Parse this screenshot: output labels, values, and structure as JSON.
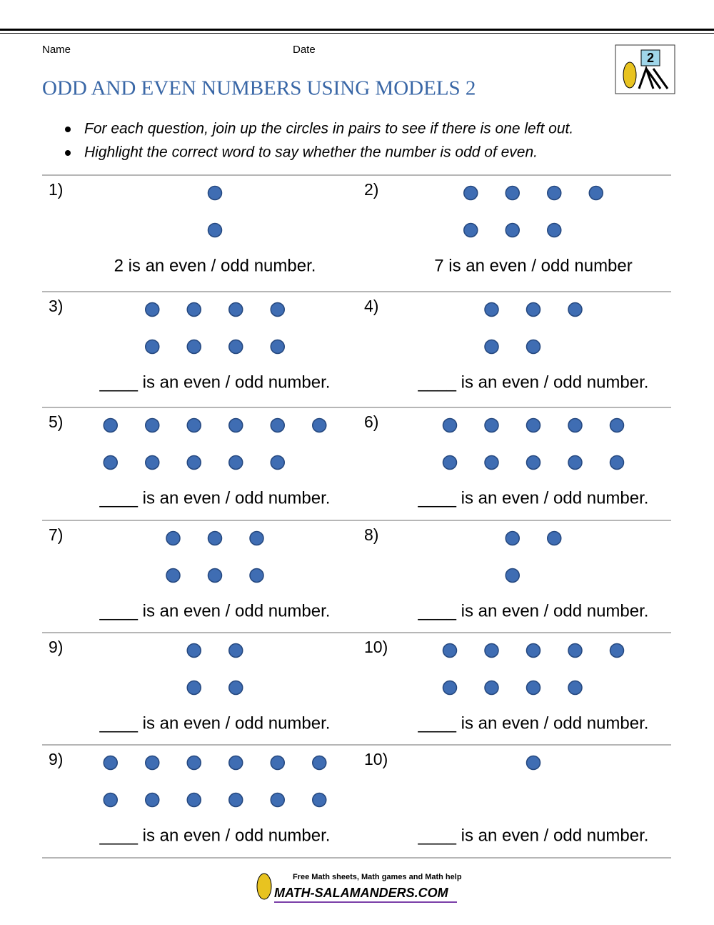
{
  "header": {
    "name_label": "Name",
    "date_label": "Date",
    "title": "ODD AND EVEN NUMBERS USING MODELS 2",
    "logo_text": "2"
  },
  "instructions": [
    "For each question, join up the circles in pairs to see if there is one left out.",
    "Highlight the correct word to say whether the number is odd of even."
  ],
  "questions": [
    {
      "number": "1)",
      "dots": [
        1,
        1
      ],
      "sentence": "2 is an even / odd number."
    },
    {
      "number": "2)",
      "dots": [
        4,
        3
      ],
      "sentence": "7 is an even / odd number"
    },
    {
      "number": "3)",
      "dots": [
        4,
        4
      ],
      "sentence": "____ is an even / odd number."
    },
    {
      "number": "4)",
      "dots": [
        3,
        2
      ],
      "sentence": "____ is an even / odd number."
    },
    {
      "number": "5)",
      "dots": [
        6,
        5
      ],
      "sentence": "____ is an even / odd number."
    },
    {
      "number": "6)",
      "dots": [
        5,
        5
      ],
      "sentence": "____ is an even / odd number."
    },
    {
      "number": "7)",
      "dots": [
        3,
        3
      ],
      "sentence": "____ is an even / odd number."
    },
    {
      "number": "8)",
      "dots": [
        2,
        1
      ],
      "sentence": "____ is an even / odd number."
    },
    {
      "number": "9)",
      "dots": [
        2,
        2
      ],
      "sentence": "____ is an even / odd number."
    },
    {
      "number": "10)",
      "dots": [
        5,
        4
      ],
      "sentence": "____ is an even / odd number."
    },
    {
      "number": "9)",
      "dots": [
        6,
        6
      ],
      "sentence": "____ is an even / odd number."
    },
    {
      "number": "10)",
      "dots": [
        1,
        0
      ],
      "sentence": "____ is an even / odd number."
    }
  ],
  "footer": {
    "tagline": "Free Math sheets, Math games and Math help",
    "site": "MATH-SALAMANDERS.COM"
  }
}
